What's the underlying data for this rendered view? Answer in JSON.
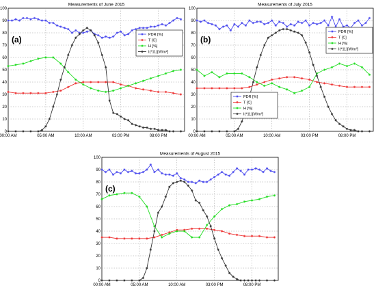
{
  "chart_data": [
    {
      "type": "line",
      "panel_label": "(a)",
      "title": "Measurements of June 2015",
      "xlabel": "",
      "ylabel": "",
      "ylim": [
        0,
        100
      ],
      "yticks": [
        0,
        10,
        20,
        30,
        40,
        50,
        60,
        70,
        80,
        90,
        100
      ],
      "x_tick_labels": [
        "00:00 AM",
        "05:00 AM",
        "10:00 AM",
        "03:00 PM",
        "08:00 PM"
      ],
      "x_tick_positions": [
        0,
        5,
        10,
        15,
        20
      ],
      "xlim": [
        0,
        23.5
      ],
      "grid": true,
      "legend_position": "right-middle",
      "series": [
        {
          "name": "PDR [%]",
          "color": "#4a4aee",
          "marker": "star",
          "x": [
            0,
            0.5,
            1,
            1.5,
            2,
            2.5,
            3,
            3.5,
            4,
            4.5,
            5,
            5.5,
            6,
            6.5,
            7,
            7.5,
            8,
            8.5,
            9,
            9.5,
            10,
            10.5,
            11,
            11.5,
            12,
            12.5,
            13,
            13.5,
            14,
            14.5,
            15,
            15.5,
            16,
            16.5,
            17,
            17.5,
            18,
            18.5,
            19,
            19.5,
            20,
            20.5,
            21,
            21.5,
            22,
            22.5,
            23
          ],
          "values": [
            90,
            90,
            91,
            90,
            92,
            92,
            91,
            92,
            91,
            90,
            90,
            88,
            88,
            86,
            85,
            84,
            83,
            80,
            82,
            80,
            80,
            81,
            82,
            79,
            78,
            76,
            77,
            76,
            77,
            80,
            81,
            78,
            79,
            82,
            83,
            84,
            84,
            84,
            85,
            85,
            86,
            87,
            86,
            88,
            90,
            92,
            91
          ]
        },
        {
          "name": "T [C]",
          "color": "#ee3333",
          "marker": "star",
          "x": [
            0,
            1,
            2,
            3,
            4,
            5,
            6,
            7,
            8,
            9,
            10,
            11,
            12,
            13,
            14,
            15,
            16,
            17,
            18,
            19,
            20,
            21,
            22,
            23
          ],
          "values": [
            32,
            31,
            31,
            31,
            31,
            31,
            32,
            33,
            36,
            39,
            40,
            40,
            40,
            40,
            40,
            38,
            37,
            35,
            34,
            33,
            32,
            32,
            31,
            30
          ]
        },
        {
          "name": "H [%]",
          "color": "#22dd22",
          "marker": "star",
          "x": [
            0,
            1,
            2,
            3,
            4,
            5,
            6,
            7,
            8,
            9,
            10,
            11,
            12,
            13,
            14,
            15,
            16,
            17,
            18,
            19,
            20,
            21,
            22,
            23
          ],
          "values": [
            53,
            54,
            55,
            57,
            59,
            60,
            60,
            55,
            48,
            42,
            38,
            35,
            33,
            32,
            33,
            35,
            37,
            39,
            41,
            43,
            45,
            47,
            49,
            50
          ]
        },
        {
          "name": "I(*11)[W/m²]",
          "color": "#333333",
          "marker": "star",
          "x": [
            0,
            1,
            2,
            3,
            4,
            4.5,
            5,
            5.5,
            6,
            6.5,
            7,
            7.5,
            8,
            8.5,
            9,
            9.5,
            10,
            10.5,
            11,
            11.5,
            12,
            12.5,
            13,
            13.5,
            14,
            14.5,
            15,
            15.5,
            16,
            16.5,
            17,
            17.5,
            18,
            18.5,
            19,
            19.5,
            20,
            20.5,
            21,
            21.5,
            22,
            23
          ],
          "values": [
            0,
            0,
            0,
            0,
            0,
            1,
            4,
            10,
            20,
            30,
            42,
            52,
            62,
            70,
            76,
            79,
            82,
            84,
            82,
            78,
            72,
            62,
            52,
            25,
            15,
            14,
            12,
            10,
            9,
            6,
            5,
            4,
            3,
            3,
            2,
            2,
            1,
            1,
            1,
            0,
            0,
            0
          ]
        }
      ]
    },
    {
      "type": "line",
      "panel_label": "(b)",
      "title": "Measurements of July 2015",
      "xlabel": "",
      "ylabel": "",
      "ylim": [
        0,
        100
      ],
      "yticks": [
        0,
        10,
        20,
        30,
        40,
        50,
        60,
        70,
        80,
        90,
        100
      ],
      "x_tick_labels": [
        "00:00 AM",
        "05:00 AM",
        "10:00 AM",
        "03:00 PM",
        "08:00 PM"
      ],
      "x_tick_positions": [
        0,
        5,
        10,
        15,
        20
      ],
      "xlim": [
        0,
        23.5
      ],
      "grid": true,
      "legend_position": "right-middle",
      "series": [
        {
          "name": "PDR [%]",
          "color": "#4a4aee",
          "marker": "star",
          "x": [
            0,
            0.5,
            1,
            1.5,
            2,
            2.5,
            3,
            3.5,
            4,
            4.5,
            5,
            5.5,
            6,
            6.5,
            7,
            7.5,
            8,
            8.5,
            9,
            9.5,
            10,
            10.5,
            11,
            11.5,
            12,
            12.5,
            13,
            13.5,
            14,
            14.5,
            15,
            15.5,
            16,
            16.5,
            17,
            17.5,
            18,
            18.5,
            19,
            19.5,
            20,
            20.5,
            21,
            21.5,
            22,
            22.5,
            23
          ],
          "values": [
            90,
            89,
            90,
            88,
            87,
            86,
            83,
            85,
            86,
            82,
            87,
            85,
            88,
            86,
            90,
            88,
            89,
            89,
            87,
            88,
            90,
            86,
            89,
            88,
            85,
            87,
            86,
            89,
            88,
            90,
            86,
            88,
            87,
            88,
            90,
            86,
            93,
            85,
            91,
            85,
            86,
            84,
            88,
            90,
            86,
            88,
            92
          ]
        },
        {
          "name": "T [C]",
          "color": "#ee3333",
          "marker": "star",
          "x": [
            0,
            1,
            2,
            3,
            4,
            5,
            6,
            7,
            8,
            9,
            10,
            11,
            12,
            13,
            14,
            15,
            16,
            17,
            18,
            19,
            20,
            21,
            22,
            23
          ],
          "values": [
            35,
            35,
            35,
            35,
            35,
            35,
            35,
            36,
            38,
            40,
            42,
            43,
            44,
            44,
            43,
            42,
            40,
            39,
            38,
            37,
            36,
            36,
            36,
            36
          ]
        },
        {
          "name": "H [%]",
          "color": "#22dd22",
          "marker": "star",
          "x": [
            0,
            1,
            2,
            3,
            4,
            5,
            6,
            7,
            8,
            9,
            10,
            11,
            12,
            13,
            14,
            15,
            16,
            17,
            18,
            19,
            20,
            21,
            22,
            23
          ],
          "values": [
            50,
            45,
            48,
            44,
            47,
            47,
            47,
            44,
            40,
            37,
            39,
            36,
            34,
            31,
            33,
            36,
            47,
            50,
            52,
            55,
            53,
            55,
            52,
            46
          ]
        },
        {
          "name": "I(*11)[W/m²]",
          "color": "#333333",
          "marker": "star",
          "x": [
            0,
            1,
            2,
            3,
            4,
            5,
            5.5,
            6,
            6.5,
            7,
            7.5,
            8,
            8.5,
            9,
            9.5,
            10,
            10.5,
            11,
            11.5,
            12,
            12.5,
            13,
            13.5,
            14,
            14.5,
            15,
            15.5,
            16,
            16.5,
            17,
            17.5,
            18,
            18.5,
            19,
            19.5,
            20,
            20.5,
            21,
            21.5,
            22,
            23
          ],
          "values": [
            0,
            0,
            0,
            0,
            0,
            0,
            2,
            8,
            17,
            28,
            40,
            52,
            62,
            70,
            76,
            78,
            80,
            82,
            83,
            83,
            82,
            81,
            80,
            78,
            72,
            64,
            54,
            45,
            36,
            28,
            20,
            14,
            9,
            6,
            4,
            2,
            1,
            1,
            0,
            0,
            0
          ]
        }
      ]
    },
    {
      "type": "line",
      "panel_label": "(c)",
      "title": "Measurements of August 2015",
      "xlabel": "",
      "ylabel": "",
      "ylim": [
        0,
        100
      ],
      "yticks": [
        0,
        10,
        20,
        30,
        40,
        50,
        60,
        70,
        80,
        90,
        100
      ],
      "x_tick_labels": [
        "00:00 AM",
        "05:00 AM",
        "10:00 AM",
        "03:00 PM",
        "08:00 PM"
      ],
      "x_tick_positions": [
        0,
        5,
        10,
        15,
        20
      ],
      "xlim": [
        0,
        23.5
      ],
      "grid": true,
      "legend_position": "bottom-right",
      "series": [
        {
          "name": "PDR [%]",
          "color": "#4a4aee",
          "marker": "star",
          "x": [
            0,
            0.5,
            1,
            1.5,
            2,
            2.5,
            3,
            3.5,
            4,
            4.5,
            5,
            5.5,
            6,
            6.5,
            7,
            7.5,
            8,
            8.5,
            9,
            9.5,
            10,
            10.5,
            11,
            11.5,
            12,
            12.5,
            13,
            13.5,
            14,
            14.5,
            15,
            15.5,
            16,
            16.5,
            17,
            17.5,
            18,
            18.5,
            19,
            19.5,
            20,
            20.5,
            21,
            21.5,
            22,
            22.5,
            23
          ],
          "values": [
            90,
            88,
            90,
            86,
            88,
            87,
            90,
            88,
            89,
            87,
            87,
            88,
            90,
            94,
            88,
            90,
            87,
            86,
            86,
            85,
            87,
            83,
            82,
            80,
            80,
            79,
            81,
            80,
            80,
            82,
            84,
            86,
            88,
            86,
            85,
            88,
            91,
            89,
            86,
            90,
            90,
            91,
            90,
            88,
            91,
            89,
            88
          ]
        },
        {
          "name": "T [C]",
          "color": "#ee3333",
          "marker": "star",
          "x": [
            0,
            1,
            2,
            3,
            4,
            5,
            6,
            7,
            8,
            9,
            10,
            11,
            12,
            13,
            14,
            15,
            16,
            17,
            18,
            19,
            20,
            21,
            22,
            23
          ],
          "values": [
            35,
            35,
            34,
            34,
            34,
            34,
            34,
            35,
            37,
            39,
            41,
            41,
            42,
            42,
            42,
            41,
            40,
            38,
            37,
            36,
            36,
            36,
            35,
            35
          ]
        },
        {
          "name": "H [%]",
          "color": "#22dd22",
          "marker": "star",
          "x": [
            0,
            1,
            2,
            3,
            4,
            5,
            6,
            7,
            8,
            9,
            10,
            11,
            12,
            13,
            14,
            15,
            16,
            17,
            18,
            19,
            20,
            21,
            22,
            23
          ],
          "values": [
            66,
            69,
            70,
            71,
            71,
            68,
            60,
            44,
            35,
            38,
            40,
            40,
            35,
            35,
            45,
            52,
            58,
            61,
            62,
            64,
            65,
            66,
            68,
            69
          ]
        },
        {
          "name": "I(*11)[W/m²]",
          "color": "#333333",
          "marker": "star",
          "x": [
            0,
            1,
            2,
            3,
            4,
            5,
            5.5,
            6,
            6.5,
            7,
            7.5,
            8,
            8.5,
            9,
            9.5,
            10,
            10.5,
            11,
            11.5,
            12,
            12.5,
            13,
            13.5,
            14,
            14.5,
            15,
            15.5,
            16,
            16.5,
            17,
            17.5,
            18,
            18.5,
            19,
            19.5,
            20,
            20.5,
            21,
            22,
            23
          ],
          "values": [
            0,
            0,
            0,
            0,
            0,
            0,
            2,
            10,
            25,
            40,
            55,
            60,
            68,
            76,
            79,
            80,
            81,
            80,
            77,
            73,
            65,
            63,
            57,
            52,
            44,
            34,
            25,
            18,
            12,
            6,
            3,
            1,
            0,
            0,
            0,
            0,
            0,
            0,
            0,
            0
          ]
        }
      ]
    }
  ]
}
